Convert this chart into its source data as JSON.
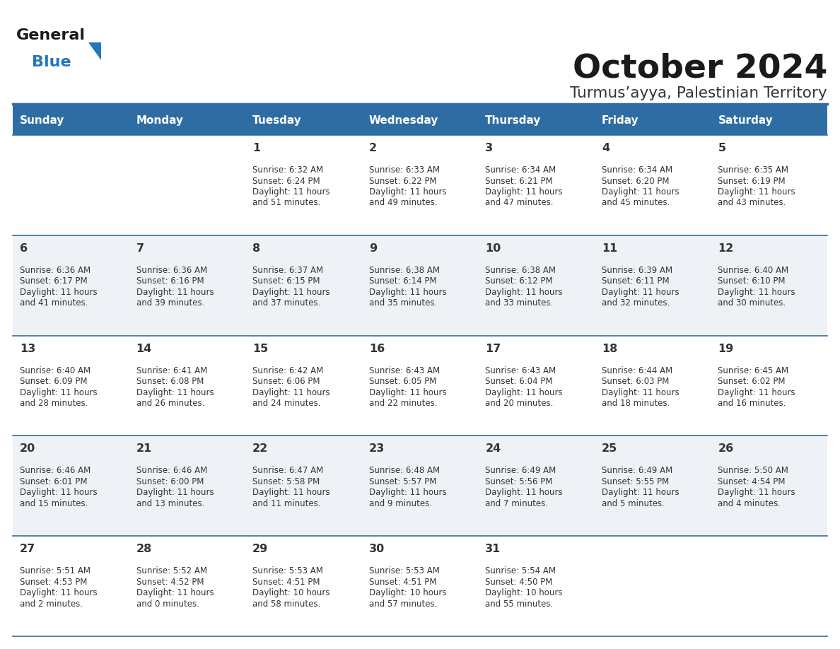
{
  "title": "October 2024",
  "subtitle": "Turmus’ayya, Palestinian Territory",
  "header_bg": "#2E6DA4",
  "header_text_color": "#FFFFFF",
  "row_bg_odd": "#FFFFFF",
  "row_bg_even": "#EEF2F7",
  "row_line_color": "#2E6DA4",
  "day_headers": [
    "Sunday",
    "Monday",
    "Tuesday",
    "Wednesday",
    "Thursday",
    "Friday",
    "Saturday"
  ],
  "title_color": "#1a1a1a",
  "subtitle_color": "#333333",
  "cell_text_color": "#333333",
  "date_text_color": "#333333",
  "logo_general_color": "#1a1a1a",
  "logo_blue_color": "#2277BB",
  "days": [
    {
      "date": 1,
      "col": 2,
      "row": 0,
      "sunrise": "6:32 AM",
      "sunset": "6:24 PM",
      "daylight_h": "11 hours",
      "daylight_m": "and 51 minutes."
    },
    {
      "date": 2,
      "col": 3,
      "row": 0,
      "sunrise": "6:33 AM",
      "sunset": "6:22 PM",
      "daylight_h": "11 hours",
      "daylight_m": "and 49 minutes."
    },
    {
      "date": 3,
      "col": 4,
      "row": 0,
      "sunrise": "6:34 AM",
      "sunset": "6:21 PM",
      "daylight_h": "11 hours",
      "daylight_m": "and 47 minutes."
    },
    {
      "date": 4,
      "col": 5,
      "row": 0,
      "sunrise": "6:34 AM",
      "sunset": "6:20 PM",
      "daylight_h": "11 hours",
      "daylight_m": "and 45 minutes."
    },
    {
      "date": 5,
      "col": 6,
      "row": 0,
      "sunrise": "6:35 AM",
      "sunset": "6:19 PM",
      "daylight_h": "11 hours",
      "daylight_m": "and 43 minutes."
    },
    {
      "date": 6,
      "col": 0,
      "row": 1,
      "sunrise": "6:36 AM",
      "sunset": "6:17 PM",
      "daylight_h": "11 hours",
      "daylight_m": "and 41 minutes."
    },
    {
      "date": 7,
      "col": 1,
      "row": 1,
      "sunrise": "6:36 AM",
      "sunset": "6:16 PM",
      "daylight_h": "11 hours",
      "daylight_m": "and 39 minutes."
    },
    {
      "date": 8,
      "col": 2,
      "row": 1,
      "sunrise": "6:37 AM",
      "sunset": "6:15 PM",
      "daylight_h": "11 hours",
      "daylight_m": "and 37 minutes."
    },
    {
      "date": 9,
      "col": 3,
      "row": 1,
      "sunrise": "6:38 AM",
      "sunset": "6:14 PM",
      "daylight_h": "11 hours",
      "daylight_m": "and 35 minutes."
    },
    {
      "date": 10,
      "col": 4,
      "row": 1,
      "sunrise": "6:38 AM",
      "sunset": "6:12 PM",
      "daylight_h": "11 hours",
      "daylight_m": "and 33 minutes."
    },
    {
      "date": 11,
      "col": 5,
      "row": 1,
      "sunrise": "6:39 AM",
      "sunset": "6:11 PM",
      "daylight_h": "11 hours",
      "daylight_m": "and 32 minutes."
    },
    {
      "date": 12,
      "col": 6,
      "row": 1,
      "sunrise": "6:40 AM",
      "sunset": "6:10 PM",
      "daylight_h": "11 hours",
      "daylight_m": "and 30 minutes."
    },
    {
      "date": 13,
      "col": 0,
      "row": 2,
      "sunrise": "6:40 AM",
      "sunset": "6:09 PM",
      "daylight_h": "11 hours",
      "daylight_m": "and 28 minutes."
    },
    {
      "date": 14,
      "col": 1,
      "row": 2,
      "sunrise": "6:41 AM",
      "sunset": "6:08 PM",
      "daylight_h": "11 hours",
      "daylight_m": "and 26 minutes."
    },
    {
      "date": 15,
      "col": 2,
      "row": 2,
      "sunrise": "6:42 AM",
      "sunset": "6:06 PM",
      "daylight_h": "11 hours",
      "daylight_m": "and 24 minutes."
    },
    {
      "date": 16,
      "col": 3,
      "row": 2,
      "sunrise": "6:43 AM",
      "sunset": "6:05 PM",
      "daylight_h": "11 hours",
      "daylight_m": "and 22 minutes."
    },
    {
      "date": 17,
      "col": 4,
      "row": 2,
      "sunrise": "6:43 AM",
      "sunset": "6:04 PM",
      "daylight_h": "11 hours",
      "daylight_m": "and 20 minutes."
    },
    {
      "date": 18,
      "col": 5,
      "row": 2,
      "sunrise": "6:44 AM",
      "sunset": "6:03 PM",
      "daylight_h": "11 hours",
      "daylight_m": "and 18 minutes."
    },
    {
      "date": 19,
      "col": 6,
      "row": 2,
      "sunrise": "6:45 AM",
      "sunset": "6:02 PM",
      "daylight_h": "11 hours",
      "daylight_m": "and 16 minutes."
    },
    {
      "date": 20,
      "col": 0,
      "row": 3,
      "sunrise": "6:46 AM",
      "sunset": "6:01 PM",
      "daylight_h": "11 hours",
      "daylight_m": "and 15 minutes."
    },
    {
      "date": 21,
      "col": 1,
      "row": 3,
      "sunrise": "6:46 AM",
      "sunset": "6:00 PM",
      "daylight_h": "11 hours",
      "daylight_m": "and 13 minutes."
    },
    {
      "date": 22,
      "col": 2,
      "row": 3,
      "sunrise": "6:47 AM",
      "sunset": "5:58 PM",
      "daylight_h": "11 hours",
      "daylight_m": "and 11 minutes."
    },
    {
      "date": 23,
      "col": 3,
      "row": 3,
      "sunrise": "6:48 AM",
      "sunset": "5:57 PM",
      "daylight_h": "11 hours",
      "daylight_m": "and 9 minutes."
    },
    {
      "date": 24,
      "col": 4,
      "row": 3,
      "sunrise": "6:49 AM",
      "sunset": "5:56 PM",
      "daylight_h": "11 hours",
      "daylight_m": "and 7 minutes."
    },
    {
      "date": 25,
      "col": 5,
      "row": 3,
      "sunrise": "6:49 AM",
      "sunset": "5:55 PM",
      "daylight_h": "11 hours",
      "daylight_m": "and 5 minutes."
    },
    {
      "date": 26,
      "col": 6,
      "row": 3,
      "sunrise": "5:50 AM",
      "sunset": "4:54 PM",
      "daylight_h": "11 hours",
      "daylight_m": "and 4 minutes."
    },
    {
      "date": 27,
      "col": 0,
      "row": 4,
      "sunrise": "5:51 AM",
      "sunset": "4:53 PM",
      "daylight_h": "11 hours",
      "daylight_m": "and 2 minutes."
    },
    {
      "date": 28,
      "col": 1,
      "row": 4,
      "sunrise": "5:52 AM",
      "sunset": "4:52 PM",
      "daylight_h": "11 hours",
      "daylight_m": "and 0 minutes."
    },
    {
      "date": 29,
      "col": 2,
      "row": 4,
      "sunrise": "5:53 AM",
      "sunset": "4:51 PM",
      "daylight_h": "10 hours",
      "daylight_m": "and 58 minutes."
    },
    {
      "date": 30,
      "col": 3,
      "row": 4,
      "sunrise": "5:53 AM",
      "sunset": "4:51 PM",
      "daylight_h": "10 hours",
      "daylight_m": "and 57 minutes."
    },
    {
      "date": 31,
      "col": 4,
      "row": 4,
      "sunrise": "5:54 AM",
      "sunset": "4:50 PM",
      "daylight_h": "10 hours",
      "daylight_m": "and 55 minutes."
    }
  ]
}
